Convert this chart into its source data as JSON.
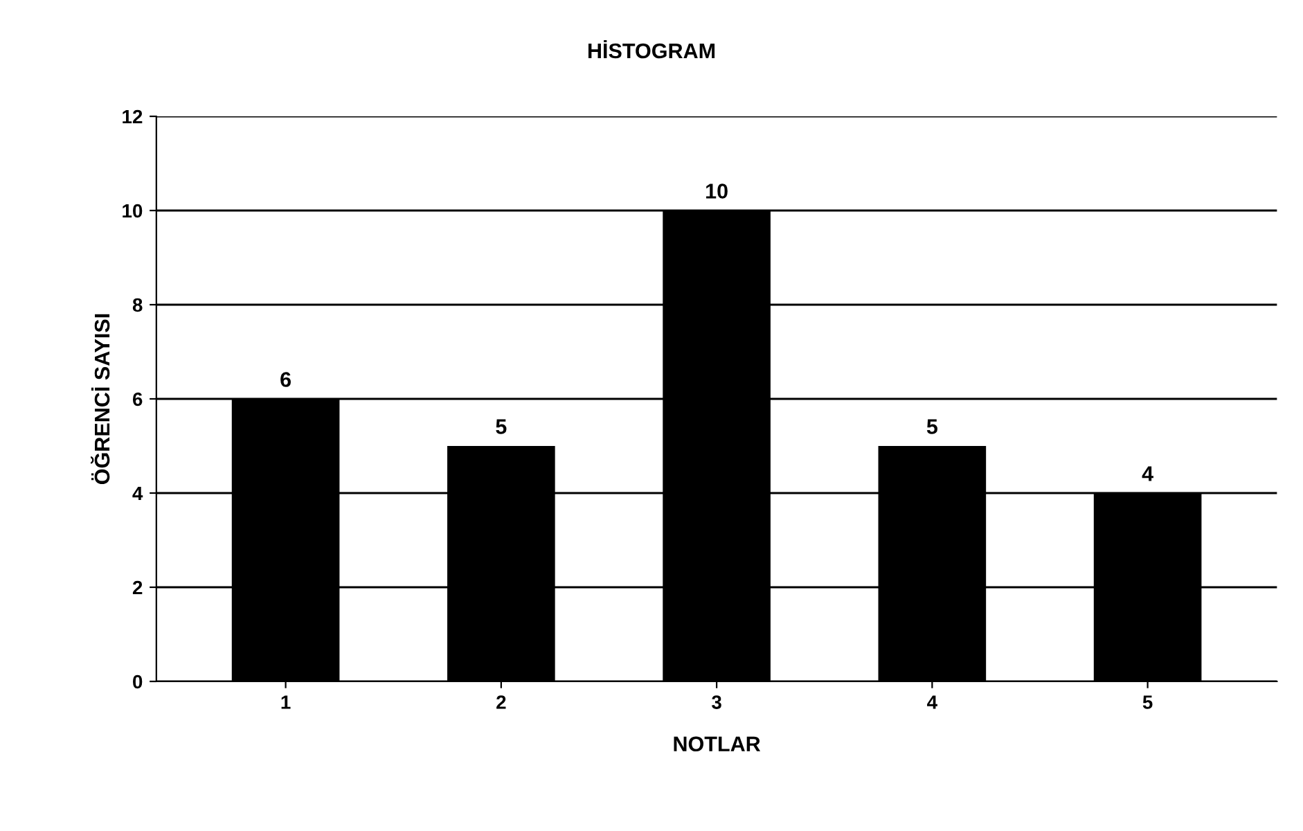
{
  "chart_data": {
    "type": "bar",
    "title": "HİSTOGRAM",
    "xlabel": "NOTLAR",
    "ylabel": "ÖĞRENCİ SAYISI",
    "categories": [
      "1",
      "2",
      "3",
      "4",
      "5"
    ],
    "values": [
      6,
      5,
      10,
      5,
      4
    ],
    "color": "#000000",
    "ylim": [
      0,
      12
    ],
    "yticks": [
      0,
      2,
      4,
      6,
      8,
      10,
      12
    ],
    "grid": "y",
    "data_labels": true
  }
}
